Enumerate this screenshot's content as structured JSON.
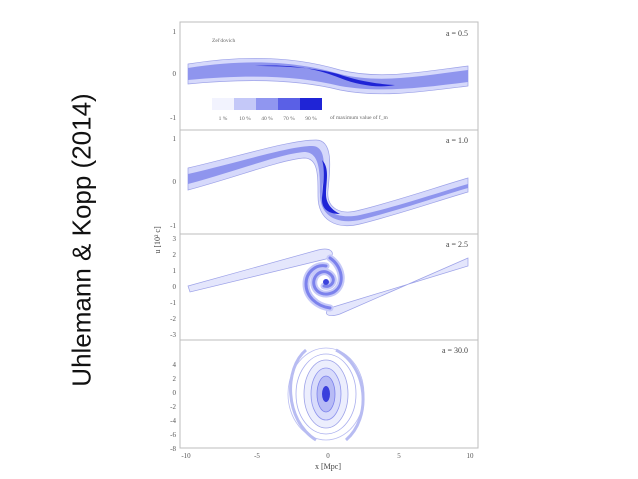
{
  "caption": "Uhlemann & Kopp (2014)",
  "colors": {
    "frame": "#bdbdbd",
    "band_light": "#d6d9fb",
    "band_mid": "#8f95ee",
    "band_dark": "#1f24d6",
    "contour": "#9da2e8"
  },
  "chart_data": [
    {
      "type": "area",
      "a_label": "a = 0.5",
      "annotation": "Zel'dovich",
      "yticks": [
        "1",
        "0",
        "-1"
      ],
      "legend": {
        "swatch_labels": [
          "1 %",
          "10 %",
          "40 %",
          "70 %",
          "90 %"
        ],
        "text": "of maximum value of f_m"
      }
    },
    {
      "type": "area",
      "a_label": "a = 1.0",
      "yticks": [
        "1",
        "0",
        "-1"
      ]
    },
    {
      "type": "area",
      "a_label": "a = 2.5",
      "yticks": [
        "3",
        "2",
        "1",
        "0",
        "-1",
        "-2",
        "-3"
      ]
    },
    {
      "type": "area",
      "a_label": "a = 30.0",
      "yticks": [
        "4",
        "2",
        "0",
        "-2",
        "-4",
        "-6",
        "-8"
      ],
      "xticks": [
        "-10",
        "-5",
        "0",
        "5",
        "10"
      ],
      "xlabel": "x [Mpc]"
    }
  ],
  "ylabel": "u [10² c]"
}
